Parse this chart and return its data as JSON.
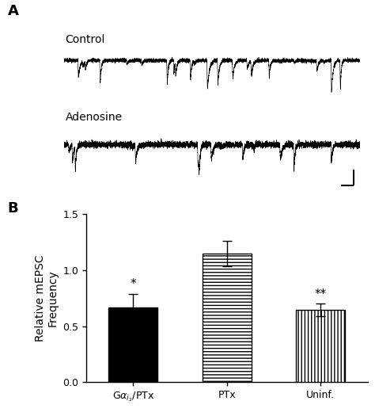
{
  "panel_A_label": "A",
  "panel_B_label": "B",
  "trace_label_control": "Control",
  "trace_label_adenosine": "Adenosine",
  "bar_values": [
    0.67,
    1.15,
    0.645
  ],
  "bar_errors": [
    0.12,
    0.115,
    0.055
  ],
  "bar_significance": [
    "*",
    "",
    "**"
  ],
  "bar_colors": [
    "black",
    "white",
    "white"
  ],
  "bar_hatch": [
    null,
    "----",
    "||||"
  ],
  "ylabel": "Relative mEPSC\nFrequency",
  "ylim": [
    0.0,
    1.5
  ],
  "yticks": [
    0.0,
    0.5,
    1.0,
    1.5
  ],
  "background_color": "white",
  "error_cap_size": 4,
  "sig_fontsize": 11,
  "axis_fontsize": 10,
  "tick_fontsize": 9,
  "label_fontsize": 13,
  "ctrl_seed": 10,
  "aden_seed": 77,
  "ctrl_n_events": 28,
  "aden_n_events": 14,
  "ctrl_noise": 0.055,
  "aden_noise": 0.038,
  "ctrl_event_amp": 0.55,
  "aden_event_amp": 0.42
}
